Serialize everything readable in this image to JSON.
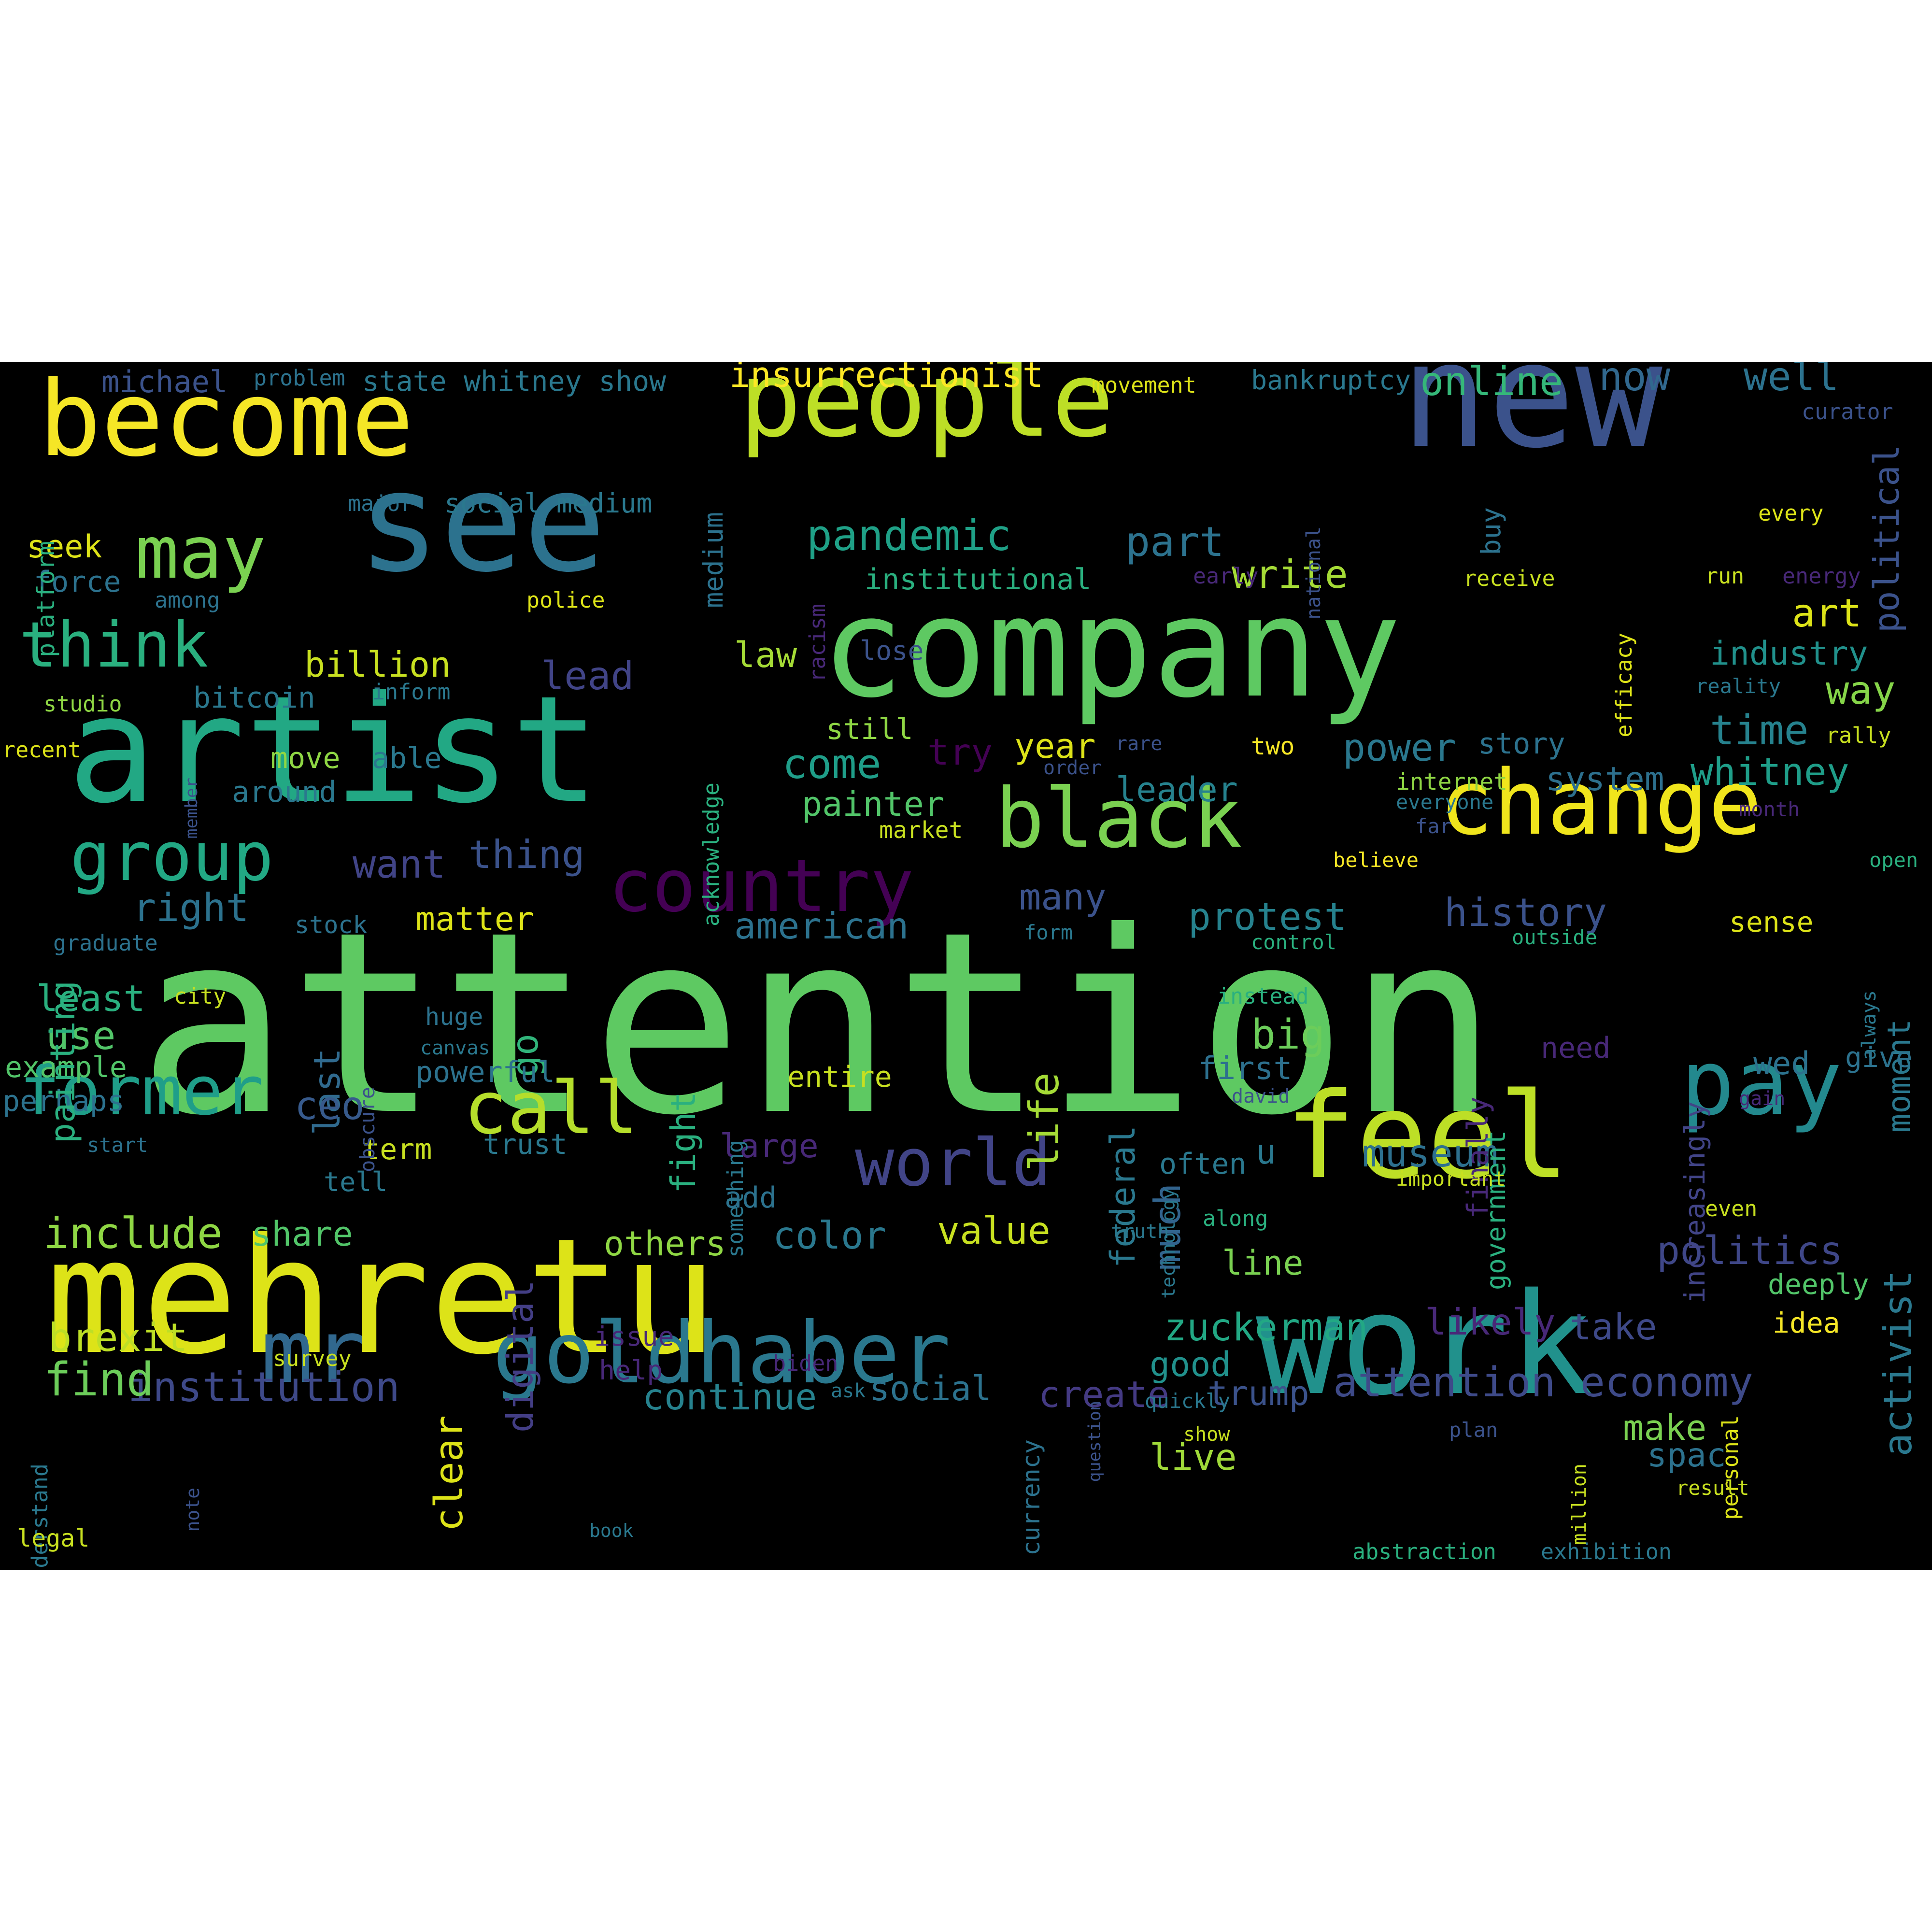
{
  "background": "#000000",
  "page_background": "#ffffff",
  "words": [
    {
      "text": "attention",
      "color": "#5ec962"
    },
    {
      "text": "mehretu",
      "color": "#dde318"
    },
    {
      "text": "artist",
      "color": "#22a884"
    },
    {
      "text": "company",
      "color": "#5ec962"
    },
    {
      "text": "work",
      "color": "#21918c"
    },
    {
      "text": "new",
      "color": "#3b528b"
    },
    {
      "text": "people",
      "color": "#bddf26"
    },
    {
      "text": "see",
      "color": "#2c728e"
    },
    {
      "text": "become",
      "color": "#f5e626"
    },
    {
      "text": "feel",
      "color": "#bddf26"
    },
    {
      "text": "goldhaber",
      "color": "#2a788e"
    },
    {
      "text": "change",
      "color": "#f0e51c"
    },
    {
      "text": "black",
      "color": "#7ad151"
    },
    {
      "text": "pay",
      "color": "#23898e"
    },
    {
      "text": "mr",
      "color": "#31688e"
    },
    {
      "text": "call",
      "color": "#b5de2b"
    },
    {
      "text": "former",
      "color": "#1f9e89"
    },
    {
      "text": "world",
      "color": "#414487"
    },
    {
      "text": "country",
      "color": "#440154"
    },
    {
      "text": "group",
      "color": "#22a884"
    },
    {
      "text": "may",
      "color": "#7ad151"
    },
    {
      "text": "think",
      "color": "#2ab07f"
    },
    {
      "text": "insurrectionist",
      "color": "#fde725"
    },
    {
      "text": "pandemic",
      "color": "#1fa187"
    },
    {
      "text": "part",
      "color": "#2c728e"
    },
    {
      "text": "write",
      "color": "#a5db36"
    },
    {
      "text": "online",
      "color": "#35b779"
    },
    {
      "text": "now",
      "color": "#31688e"
    },
    {
      "text": "well",
      "color": "#2c728e"
    },
    {
      "text": "art",
      "color": "#dde318"
    },
    {
      "text": "industry",
      "color": "#21918c"
    },
    {
      "text": "way",
      "color": "#86d549"
    },
    {
      "text": "time",
      "color": "#26828e"
    },
    {
      "text": "whitney",
      "color": "#1f9e89"
    },
    {
      "text": "system",
      "color": "#2d708e"
    },
    {
      "text": "power",
      "color": "#2a788e"
    },
    {
      "text": "story",
      "color": "#2c728e"
    },
    {
      "text": "political",
      "color": "#3b528b"
    },
    {
      "text": "attention economy",
      "color": "#3e4a89"
    },
    {
      "text": "institution",
      "color": "#3e4989"
    },
    {
      "text": "continue",
      "color": "#26828e"
    },
    {
      "text": "social",
      "color": "#2c728e"
    },
    {
      "text": "create",
      "color": "#443a83"
    },
    {
      "text": "trump",
      "color": "#3b528b"
    },
    {
      "text": "brexit",
      "color": "#bddf26"
    },
    {
      "text": "find",
      "color": "#6ccd5a"
    },
    {
      "text": "include",
      "color": "#8fd744"
    },
    {
      "text": "share",
      "color": "#52c569"
    },
    {
      "text": "others",
      "color": "#8fd744"
    },
    {
      "text": "color",
      "color": "#2a788e"
    },
    {
      "text": "value",
      "color": "#c8e020"
    },
    {
      "text": "digital",
      "color": "#433e85"
    },
    {
      "text": "much",
      "color": "#32648e"
    },
    {
      "text": "line",
      "color": "#7ad151"
    },
    {
      "text": "politics",
      "color": "#3f4788"
    },
    {
      "text": "museum",
      "color": "#2d708e"
    },
    {
      "text": "zuckerman",
      "color": "#22a884"
    },
    {
      "text": "likely",
      "color": "#482878"
    },
    {
      "text": "take",
      "color": "#3e4989"
    },
    {
      "text": "activist",
      "color": "#2a788e"
    },
    {
      "text": "good",
      "color": "#21918c"
    },
    {
      "text": "live",
      "color": "#a0da39"
    },
    {
      "text": "make",
      "color": "#7ad151"
    },
    {
      "text": "clear",
      "color": "#dde318"
    },
    {
      "text": "spac",
      "color": "#2c728e"
    },
    {
      "text": "last",
      "color": "#306a8e"
    },
    {
      "text": "least",
      "color": "#2ab07f"
    },
    {
      "text": "use",
      "color": "#52c569"
    },
    {
      "text": "example",
      "color": "#52c569"
    },
    {
      "text": "perhaps",
      "color": "#2c728e"
    },
    {
      "text": "ceo",
      "color": "#375a8c"
    },
    {
      "text": "go",
      "color": "#31b57b"
    },
    {
      "text": "big",
      "color": "#6ccd5a"
    },
    {
      "text": "first",
      "color": "#2d708e"
    },
    {
      "text": "fight",
      "color": "#2ab07f"
    },
    {
      "text": "life",
      "color": "#a5db36"
    },
    {
      "text": "federal",
      "color": "#2a788e"
    },
    {
      "text": "american",
      "color": "#2c728e"
    },
    {
      "text": "protest",
      "color": "#26828e"
    },
    {
      "text": "history",
      "color": "#3b528b"
    },
    {
      "text": "many",
      "color": "#3b528b"
    },
    {
      "text": "moment",
      "color": "#2a788e"
    },
    {
      "text": "matter",
      "color": "#dde318"
    },
    {
      "text": "right",
      "color": "#2c728e"
    },
    {
      "text": "want",
      "color": "#414487"
    },
    {
      "text": "thing",
      "color": "#3b528b"
    },
    {
      "text": "painter",
      "color": "#52c569"
    },
    {
      "text": "leader",
      "color": "#26828e"
    },
    {
      "text": "year",
      "color": "#dde318"
    },
    {
      "text": "come",
      "color": "#1f9e89"
    },
    {
      "text": "try",
      "color": "#440154"
    },
    {
      "text": "still",
      "color": "#8fd744"
    },
    {
      "text": "lead",
      "color": "#414487"
    },
    {
      "text": "law",
      "color": "#a5db36"
    },
    {
      "text": "billion",
      "color": "#c8e020"
    },
    {
      "text": "bitcoin",
      "color": "#2a788e"
    },
    {
      "text": "seek",
      "color": "#dde318"
    },
    {
      "text": "force",
      "color": "#2c728e"
    },
    {
      "text": "move",
      "color": "#8fd744"
    },
    {
      "text": "able",
      "color": "#2a788e"
    },
    {
      "text": "around",
      "color": "#2a788e"
    },
    {
      "text": "painting",
      "color": "#2ab07f"
    },
    {
      "text": "stock",
      "color": "#2c728e"
    },
    {
      "text": "term",
      "color": "#c8e020"
    },
    {
      "text": "trust",
      "color": "#2a788e"
    },
    {
      "text": "tell",
      "color": "#2a788e"
    },
    {
      "text": "large",
      "color": "#482878"
    },
    {
      "text": "add",
      "color": "#2c728e"
    },
    {
      "text": "entire",
      "color": "#c8e020"
    },
    {
      "text": "powerful",
      "color": "#2c728e"
    },
    {
      "text": "often",
      "color": "#2a788e"
    },
    {
      "text": "u",
      "color": "#2a788e"
    },
    {
      "text": "need",
      "color": "#482878"
    },
    {
      "text": "wed",
      "color": "#2c728e"
    },
    {
      "text": "give",
      "color": "#2c728e"
    },
    {
      "text": "increasingly",
      "color": "#414487"
    },
    {
      "text": "finally",
      "color": "#482878"
    },
    {
      "text": "government",
      "color": "#2ab07f"
    },
    {
      "text": "deeply",
      "color": "#52c569"
    },
    {
      "text": "idea",
      "color": "#f5e626"
    },
    {
      "text": "sense",
      "color": "#dde318"
    },
    {
      "text": "michael",
      "color": "#3b528b"
    },
    {
      "text": "problem",
      "color": "#2c728e"
    },
    {
      "text": "state",
      "color": "#2a788e"
    },
    {
      "text": "whitney show",
      "color": "#2a788e"
    },
    {
      "text": "medium",
      "color": "#2c728e"
    },
    {
      "text": "movement",
      "color": "#dde318"
    },
    {
      "text": "bankruptcy",
      "color": "#2a788e"
    },
    {
      "text": "curator",
      "color": "#3b528b"
    },
    {
      "text": "platform",
      "color": "#2ab07f"
    },
    {
      "text": "major",
      "color": "#2c728e"
    },
    {
      "text": "social medium",
      "color": "#2a788e"
    },
    {
      "text": "national",
      "color": "#3b528b"
    },
    {
      "text": "buy",
      "color": "#2c728e"
    },
    {
      "text": "every",
      "color": "#dde318"
    },
    {
      "text": "institutional",
      "color": "#2ab07f"
    },
    {
      "text": "early",
      "color": "#482878"
    },
    {
      "text": "receive",
      "color": "#c8e020"
    },
    {
      "text": "run",
      "color": "#c8e020"
    },
    {
      "text": "energy",
      "color": "#482878"
    },
    {
      "text": "among",
      "color": "#2c728e"
    },
    {
      "text": "police",
      "color": "#dde318"
    },
    {
      "text": "racism",
      "color": "#482878"
    },
    {
      "text": "lose",
      "color": "#3b528b"
    },
    {
      "text": "efficacy",
      "color": "#dde318"
    },
    {
      "text": "reality",
      "color": "#2a788e"
    },
    {
      "text": "rally",
      "color": "#c8e020"
    },
    {
      "text": "studio",
      "color": "#8fd744"
    },
    {
      "text": "member",
      "color": "#3b528b"
    },
    {
      "text": "inform",
      "color": "#2a788e"
    },
    {
      "text": "recent",
      "color": "#dde318"
    },
    {
      "text": "acknowledge",
      "color": "#2ab07f"
    },
    {
      "text": "rare",
      "color": "#3b528b"
    },
    {
      "text": "order",
      "color": "#3b528b"
    },
    {
      "text": "two",
      "color": "#f5e626"
    },
    {
      "text": "internet",
      "color": "#8fd744"
    },
    {
      "text": "everyone",
      "color": "#2a788e"
    },
    {
      "text": "far",
      "color": "#3b528b"
    },
    {
      "text": "month",
      "color": "#482878"
    },
    {
      "text": "market",
      "color": "#c8e020"
    },
    {
      "text": "believe",
      "color": "#f5e626"
    },
    {
      "text": "open",
      "color": "#2ab07f"
    },
    {
      "text": "graduate",
      "color": "#2c728e"
    },
    {
      "text": "form",
      "color": "#2a788e"
    },
    {
      "text": "control",
      "color": "#2ab07f"
    },
    {
      "text": "outside",
      "color": "#2ab07f"
    },
    {
      "text": "always",
      "color": "#2a788e"
    },
    {
      "text": "city",
      "color": "#c8e020"
    },
    {
      "text": "huge",
      "color": "#2c728e"
    },
    {
      "text": "obscure",
      "color": "#3b528b"
    },
    {
      "text": "canvas",
      "color": "#2a788e"
    },
    {
      "text": "something",
      "color": "#2a788e"
    },
    {
      "text": "instead",
      "color": "#2ab07f"
    },
    {
      "text": "david",
      "color": "#3b528b"
    },
    {
      "text": "technology",
      "color": "#2a788e"
    },
    {
      "text": "gain",
      "color": "#482878"
    },
    {
      "text": "start",
      "color": "#2c728e"
    },
    {
      "text": "important",
      "color": "#c8e020"
    },
    {
      "text": "even",
      "color": "#c8e020"
    },
    {
      "text": "truth",
      "color": "#2a788e"
    },
    {
      "text": "along",
      "color": "#2ab07f"
    },
    {
      "text": "understand",
      "color": "#2a788e"
    },
    {
      "text": "survey",
      "color": "#c8e020"
    },
    {
      "text": "issue",
      "color": "#482878"
    },
    {
      "text": "help",
      "color": "#482878"
    },
    {
      "text": "biden",
      "color": "#482878"
    },
    {
      "text": "ask",
      "color": "#2a788e"
    },
    {
      "text": "question",
      "color": "#3b528b"
    },
    {
      "text": "currency",
      "color": "#2c728e"
    },
    {
      "text": "quickly",
      "color": "#2a788e"
    },
    {
      "text": "personal",
      "color": "#dde318"
    },
    {
      "text": "show",
      "color": "#c8e020"
    },
    {
      "text": "plan",
      "color": "#3b528b"
    },
    {
      "text": "million",
      "color": "#c8e020"
    },
    {
      "text": "result",
      "color": "#c8e020"
    },
    {
      "text": "note",
      "color": "#3b528b"
    },
    {
      "text": "legal",
      "color": "#c8e020"
    },
    {
      "text": "book",
      "color": "#2a788e"
    },
    {
      "text": "abstraction",
      "color": "#2ab07f"
    },
    {
      "text": "exhibition",
      "color": "#2a788e"
    }
  ]
}
